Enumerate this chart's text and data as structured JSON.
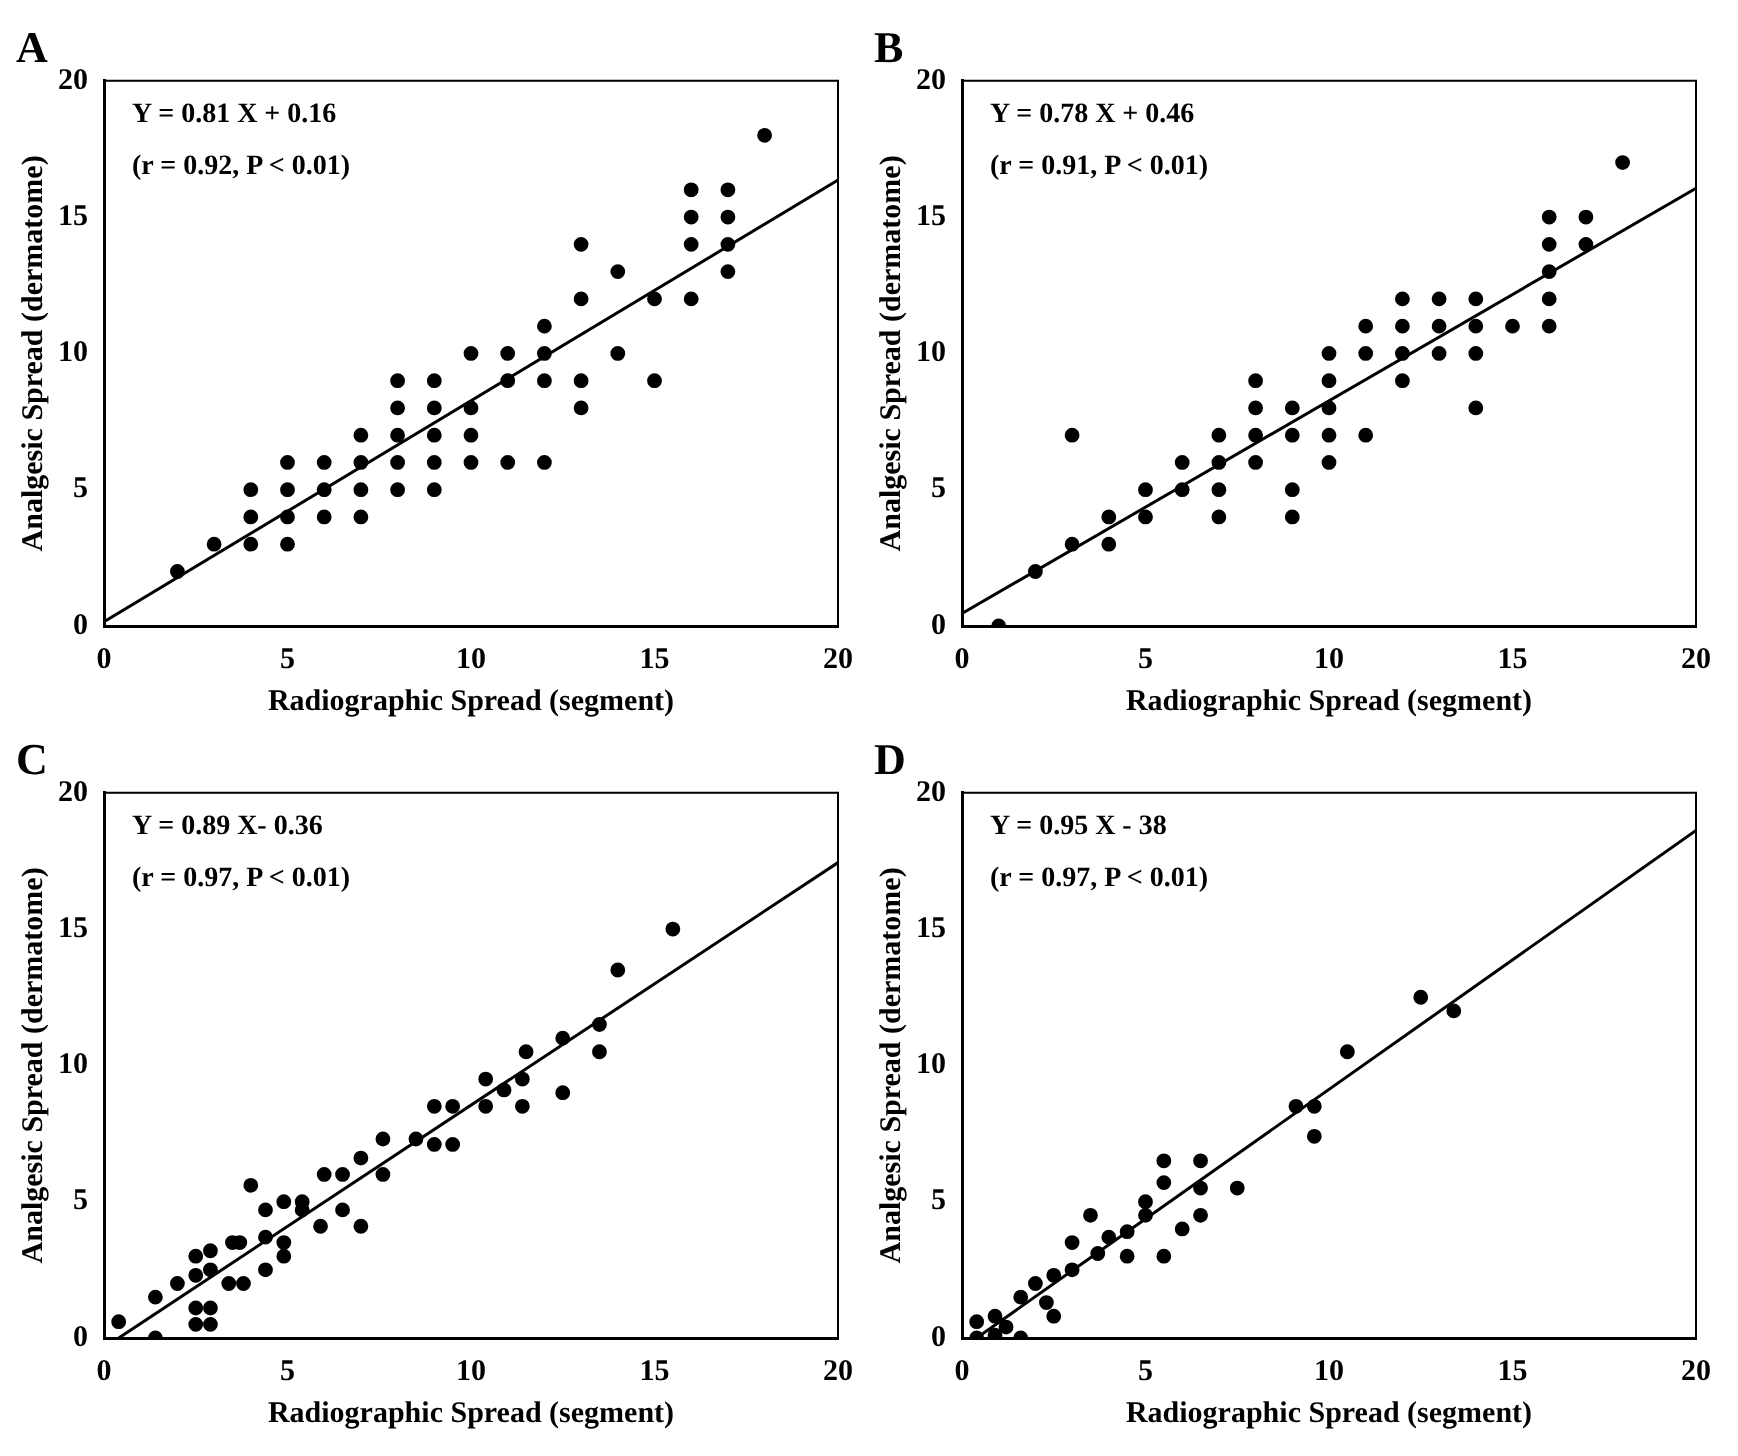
{
  "chart_data": [
    {
      "type": "scatter",
      "title": "A",
      "xlabel": "Radiographic Spread (segment)",
      "ylabel": "Analgesic Spread (dermatome)",
      "annotations": [
        "Y = 0.81 X + 0.16",
        "(r = 0.92, P < 0.01)"
      ],
      "xlim": [
        0,
        20
      ],
      "ylim": [
        0,
        20
      ],
      "xticks": [
        0,
        5,
        10,
        15,
        20
      ],
      "yticks": [
        0,
        5,
        10,
        15,
        20
      ],
      "grid": false,
      "legend": false,
      "marker": "circle",
      "series": [
        {
          "type": "scatter",
          "color": "#000000",
          "x": [
            2,
            3,
            4,
            4,
            4,
            5,
            5,
            5,
            5,
            6,
            6,
            6,
            7,
            7,
            7,
            7,
            8,
            8,
            8,
            8,
            8,
            9,
            9,
            9,
            9,
            9,
            10,
            10,
            10,
            10,
            11,
            11,
            11,
            12,
            12,
            12,
            12,
            13,
            13,
            13,
            13,
            14,
            14,
            15,
            15,
            16,
            16,
            16,
            16,
            17,
            17,
            17,
            17,
            18
          ],
          "values": [
            2,
            3,
            5,
            4,
            3,
            6,
            5,
            4,
            3,
            6,
            5,
            4,
            7,
            6,
            5,
            4,
            9,
            8,
            7,
            6,
            5,
            9,
            8,
            7,
            6,
            5,
            10,
            8,
            7,
            6,
            10,
            9,
            6,
            11,
            10,
            9,
            6,
            14,
            12,
            9,
            8,
            13,
            10,
            12,
            9,
            16,
            15,
            14,
            12,
            16,
            15,
            14,
            13,
            18
          ]
        },
        {
          "type": "line",
          "color": "#000000",
          "marker": "none",
          "x": [
            0,
            20
          ],
          "values": [
            0.16,
            16.36
          ]
        }
      ]
    },
    {
      "type": "scatter",
      "title": "B",
      "xlabel": "Radiographic Spread (segment)",
      "ylabel": "Analgesic Spread (dermatome)",
      "annotations": [
        "Y = 0.78 X + 0.46",
        "(r = 0.91, P < 0.01)"
      ],
      "xlim": [
        0,
        20
      ],
      "ylim": [
        0,
        20
      ],
      "xticks": [
        0,
        5,
        10,
        15,
        20
      ],
      "yticks": [
        0,
        5,
        10,
        15,
        20
      ],
      "grid": false,
      "legend": false,
      "marker": "circle",
      "series": [
        {
          "type": "scatter",
          "color": "#000000",
          "x": [
            1,
            2,
            3,
            3,
            4,
            4,
            5,
            5,
            6,
            6,
            7,
            7,
            7,
            7,
            8,
            8,
            8,
            8,
            9,
            9,
            9,
            9,
            10,
            10,
            10,
            10,
            10,
            11,
            11,
            11,
            12,
            12,
            12,
            12,
            13,
            13,
            13,
            14,
            14,
            14,
            14,
            15,
            16,
            16,
            16,
            16,
            16,
            17,
            17,
            18
          ],
          "values": [
            0,
            2,
            3,
            7,
            4,
            3,
            4,
            5,
            6,
            5,
            7,
            6,
            5,
            4,
            9,
            8,
            7,
            6,
            8,
            7,
            5,
            4,
            10,
            9,
            8,
            7,
            6,
            11,
            10,
            7,
            12,
            11,
            10,
            9,
            12,
            11,
            10,
            12,
            11,
            10,
            8,
            11,
            15,
            14,
            13,
            12,
            11,
            15,
            14,
            17
          ]
        },
        {
          "type": "line",
          "color": "#000000",
          "marker": "none",
          "x": [
            0,
            20
          ],
          "values": [
            0.46,
            16.06
          ]
        }
      ]
    },
    {
      "type": "scatter",
      "title": "C",
      "xlabel": "Radiographic Spread (segment)",
      "ylabel": "Analgesic Spread (dermatome)",
      "annotations": [
        "Y = 0.89 X- 0.36",
        "(r = 0.97, P < 0.01)"
      ],
      "xlim": [
        0,
        20
      ],
      "ylim": [
        0,
        20
      ],
      "xticks": [
        0,
        5,
        10,
        15,
        20
      ],
      "yticks": [
        0,
        5,
        10,
        15,
        20
      ],
      "grid": false,
      "legend": false,
      "marker": "circle",
      "series": [
        {
          "type": "scatter",
          "color": "#000000",
          "x": [
            0.4,
            1.4,
            1.4,
            2,
            2.5,
            2.5,
            2.5,
            2.5,
            2.9,
            2.9,
            2.9,
            2.9,
            3.4,
            3.8,
            3.5,
            4,
            3.7,
            4.4,
            4.4,
            4.4,
            4.9,
            4.9,
            4.9,
            5.4,
            5.4,
            5.9,
            6.5,
            7,
            6,
            6.5,
            7,
            7.6,
            7.6,
            8.5,
            9,
            9.5,
            9,
            9.5,
            10.4,
            10.4,
            10.9,
            11.4,
            11.4,
            11.5,
            12.5,
            12.5,
            13.5,
            13.5,
            14,
            15.5
          ],
          "values": [
            0.6,
            0,
            1.5,
            2,
            3,
            2.3,
            1.1,
            0.5,
            2.5,
            1.1,
            0.5,
            3.2,
            2,
            2,
            3.5,
            5.6,
            3.5,
            4.7,
            3.7,
            2.5,
            3.5,
            3,
            5,
            5,
            4.7,
            4.1,
            4.7,
            4.1,
            6,
            6,
            6.6,
            6,
            7.3,
            7.3,
            7.1,
            7.1,
            8.5,
            8.5,
            8.5,
            9.5,
            9.1,
            8.5,
            9.5,
            10.5,
            11,
            9,
            11.5,
            10.5,
            13.5,
            15
          ]
        },
        {
          "type": "line",
          "color": "#000000",
          "marker": "none",
          "x": [
            0.4,
            20
          ],
          "values": [
            0,
            17.44
          ]
        }
      ]
    },
    {
      "type": "scatter",
      "title": "D",
      "xlabel": "Radiographic Spread (segment)",
      "ylabel": "Analgesic Spread (dermatome)",
      "annotations": [
        "Y = 0.95 X - 38",
        "(r = 0.97, P < 0.01)"
      ],
      "xlim": [
        0,
        20
      ],
      "ylim": [
        0,
        20
      ],
      "xticks": [
        0,
        5,
        10,
        15,
        20
      ],
      "yticks": [
        0,
        5,
        10,
        15,
        20
      ],
      "grid": false,
      "legend": false,
      "marker": "circle",
      "series": [
        {
          "type": "scatter",
          "color": "#000000",
          "x": [
            0.4,
            0.4,
            0.9,
            0.9,
            1.2,
            1.6,
            1.6,
            2,
            2.3,
            2.5,
            2.5,
            3,
            3,
            3.5,
            3.7,
            4,
            4.5,
            4.5,
            5,
            5,
            5.5,
            5.5,
            5.5,
            6,
            6.5,
            6.5,
            6.5,
            7.5,
            9.1,
            9.6,
            9.6,
            10.5,
            12.5,
            13.4
          ],
          "values": [
            0,
            0.6,
            0.1,
            0.8,
            0.4,
            0,
            1.5,
            2,
            1.3,
            0.8,
            2.3,
            2.5,
            3.5,
            4.5,
            3.1,
            3.7,
            3,
            3.9,
            5,
            4.5,
            6.5,
            5.7,
            3,
            4,
            6.5,
            5.5,
            4.5,
            5.5,
            8.5,
            8.5,
            7.4,
            10.5,
            12.5,
            12
          ]
        },
        {
          "type": "line",
          "color": "#000000",
          "marker": "none",
          "x": [
            0.4,
            20
          ],
          "values": [
            0,
            18.62
          ]
        }
      ]
    }
  ]
}
